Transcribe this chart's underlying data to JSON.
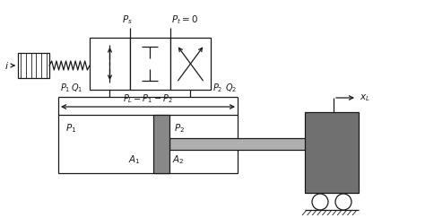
{
  "bg_color": "#ffffff",
  "line_color": "#1a1a1a",
  "dark_gray": "#707070",
  "light_gray": "#b0b0b0",
  "piston_gray": "#888888",
  "figsize": [
    4.74,
    2.43
  ],
  "dpi": 100
}
